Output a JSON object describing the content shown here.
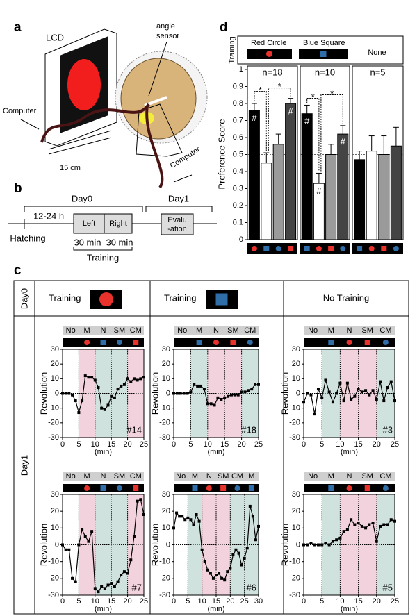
{
  "figure": {
    "panel_a": {
      "label": "a",
      "lcd": "LCD",
      "sensor": [
        "angle",
        "sensor"
      ],
      "computer_left": "Computer",
      "distance": "15 cm",
      "computer_right": "Computer"
    },
    "panel_b": {
      "label": "b",
      "day0": "Day0",
      "day1": "Day1",
      "interval": "12-24 h",
      "hatching": "Hatching",
      "left": "Left",
      "right": "Right",
      "left_time": "30 min",
      "right_time": "30 min",
      "training": "Training",
      "evaluation": [
        "Evalu",
        "-ation"
      ]
    },
    "panel_c": {
      "label": "c",
      "day0": "Day0",
      "day1": "Day1",
      "columns": [
        {
          "title": "Training",
          "shape": "circle",
          "color": "#e8322b"
        },
        {
          "title": "Training",
          "shape": "square",
          "color": "#2f6ea8"
        },
        {
          "title": "No Training"
        }
      ]
    },
    "panel_d": {
      "label": "d",
      "legend_title": "Training",
      "ylabel": "Preference Score",
      "legend": [
        {
          "name": "Red Circle",
          "shape": "circle",
          "color": "#e8322b"
        },
        {
          "name": "Blue Square",
          "shape": "square",
          "color": "#2f6ea8"
        },
        {
          "name": "None"
        }
      ]
    }
  },
  "chart_data": [
    {
      "type": "bar",
      "annotation": "n=18",
      "values": [
        0.76,
        0.45,
        0.56,
        0.8
      ],
      "errors": [
        0.04,
        0.06,
        0.06,
        0.03
      ],
      "colors": [
        "#000000",
        "#ffffff",
        "#9a9a9a",
        "#444444"
      ],
      "stimuli": [
        {
          "shape": "circle",
          "color": "#e8322b"
        },
        {
          "shape": "square",
          "color": "#2f6ea8"
        },
        {
          "shape": "circle",
          "color": "#2f6ea8"
        },
        {
          "shape": "square",
          "color": "#e8322b"
        }
      ],
      "bar_labels": [
        "#",
        null,
        null,
        "#"
      ],
      "comparisons": [
        {
          "pair": [
            0,
            1
          ],
          "label": "*"
        },
        {
          "pair": [
            1,
            3
          ],
          "label": "*"
        }
      ],
      "reference": 0.5,
      "ylim": [
        0,
        1
      ],
      "yticks": [
        0,
        0.1,
        0.2,
        0.3,
        0.4,
        0.5,
        0.6,
        0.7,
        0.8,
        0.9,
        1
      ]
    },
    {
      "type": "bar",
      "annotation": "n=10",
      "values": [
        0.74,
        0.33,
        0.5,
        0.62
      ],
      "errors": [
        0.05,
        0.06,
        0.06,
        0.05
      ],
      "colors": [
        "#000000",
        "#ffffff",
        "#9a9a9a",
        "#444444"
      ],
      "stimuli": [
        {
          "shape": "square",
          "color": "#2f6ea8"
        },
        {
          "shape": "circle",
          "color": "#e8322b"
        },
        {
          "shape": "square",
          "color": "#e8322b"
        },
        {
          "shape": "circle",
          "color": "#2f6ea8"
        }
      ],
      "bar_labels": [
        "#",
        "#",
        null,
        "#"
      ],
      "comparisons": [
        {
          "pair": [
            0,
            1
          ],
          "label": "*"
        },
        {
          "pair": [
            1,
            3
          ],
          "label": "*"
        }
      ],
      "reference": 0.5,
      "ylim": [
        0,
        1
      ]
    },
    {
      "type": "bar",
      "annotation": "n=5",
      "values": [
        0.47,
        0.52,
        0.5,
        0.55
      ],
      "errors": [
        0.05,
        0.09,
        0.11,
        0.11
      ],
      "colors": [
        "#000000",
        "#ffffff",
        "#9a9a9a",
        "#444444"
      ],
      "stimuli": [
        {
          "shape": "square",
          "color": "#2f6ea8"
        },
        {
          "shape": "circle",
          "color": "#e8322b"
        },
        {
          "shape": "square",
          "color": "#e8322b"
        },
        {
          "shape": "circle",
          "color": "#2f6ea8"
        }
      ],
      "reference": 0.5,
      "ylim": [
        0,
        1
      ]
    },
    {
      "type": "line",
      "id": "#14",
      "color": "#000000",
      "xlabel": "(min)",
      "ylabel": "Revolution",
      "phases": [
        {
          "label": "No"
        },
        {
          "label": "M",
          "shape": "circle",
          "color": "#e8322b",
          "shade": "#f2d2dc"
        },
        {
          "label": "N",
          "shape": "square",
          "color": "#2f6ea8",
          "shade": "#cfe2de"
        },
        {
          "label": "SM",
          "shape": "circle",
          "color": "#2f6ea8",
          "shade": "#cfe2de"
        },
        {
          "label": "CM",
          "shape": "square",
          "color": "#e8322b",
          "shade": "#f2d2dc"
        }
      ],
      "x": [
        0,
        1,
        2,
        3,
        4,
        5,
        6,
        7,
        8,
        9,
        10,
        11,
        12,
        13,
        14,
        15,
        16,
        17,
        18,
        19,
        20,
        21,
        22,
        23,
        24,
        25
      ],
      "values": [
        0,
        0,
        0,
        -1,
        -5,
        -13,
        -5,
        12,
        11,
        11,
        9,
        4,
        -10,
        -11,
        -8,
        -2,
        -3,
        3,
        5,
        6,
        10,
        8,
        10,
        9,
        10,
        11
      ],
      "xlim": [
        0,
        25
      ],
      "xticks": [
        0,
        5,
        10,
        15,
        20,
        25
      ],
      "ylim": [
        -30,
        30
      ],
      "yticks": [
        -30,
        -20,
        -10,
        0,
        10,
        20,
        30
      ]
    },
    {
      "type": "line",
      "id": "#18",
      "color": "#000000",
      "xlabel": "(min)",
      "ylabel": "Revolution",
      "phases": [
        {
          "label": "No"
        },
        {
          "label": "M",
          "shape": "square",
          "color": "#2f6ea8",
          "shade": "#cfe2de"
        },
        {
          "label": "N",
          "shape": "circle",
          "color": "#e8322b",
          "shade": "#f2d2dc"
        },
        {
          "label": "SM",
          "shape": "square",
          "color": "#e8322b",
          "shade": "#f2d2dc"
        },
        {
          "label": "CM",
          "shape": "circle",
          "color": "#2f6ea8",
          "shade": "#cfe2de"
        }
      ],
      "x": [
        0,
        1,
        2,
        3,
        4,
        5,
        6,
        7,
        8,
        9,
        10,
        11,
        12,
        13,
        14,
        15,
        16,
        17,
        18,
        19,
        20,
        21,
        22,
        23,
        24,
        25
      ],
      "values": [
        0,
        0,
        0,
        0,
        0,
        1,
        6,
        5,
        5,
        3,
        -7,
        -7,
        -8,
        -3,
        -4,
        -3,
        -2,
        -1,
        -1,
        -1,
        1,
        1,
        2,
        3,
        6,
        6
      ],
      "xlim": [
        0,
        25
      ],
      "xticks": [
        0,
        5,
        10,
        15,
        20,
        25
      ],
      "ylim": [
        -30,
        30
      ],
      "yticks": [
        -30,
        -20,
        -10,
        0,
        10,
        20,
        30
      ]
    },
    {
      "type": "line",
      "id": "#3",
      "color": "#000000",
      "xlabel": "(min)",
      "ylabel": "Revolution",
      "phases": [
        {
          "label": "No"
        },
        {
          "label": "M",
          "shape": "square",
          "color": "#2f6ea8",
          "shade": "#cfe2de"
        },
        {
          "label": "N",
          "shape": "circle",
          "color": "#e8322b",
          "shade": "#f2d2dc"
        },
        {
          "label": "SM",
          "shape": "square",
          "color": "#e8322b",
          "shade": "#f2d2dc"
        },
        {
          "label": "CM",
          "shape": "circle",
          "color": "#2f6ea8",
          "shade": "#cfe2de"
        }
      ],
      "x": [
        0,
        1,
        2,
        3,
        4,
        5,
        6,
        7,
        8,
        9,
        10,
        11,
        12,
        13,
        14,
        15,
        16,
        17,
        18,
        19,
        20,
        21,
        22,
        23,
        24,
        25
      ],
      "values": [
        -6,
        0,
        -1,
        -14,
        3,
        -3,
        9,
        1,
        -6,
        0,
        7,
        -5,
        7,
        -4,
        -2,
        3,
        1,
        2,
        -1,
        2,
        -4,
        8,
        -5,
        4,
        8,
        -5
      ],
      "xlim": [
        0,
        25
      ],
      "xticks": [
        0,
        5,
        10,
        15,
        20,
        25
      ],
      "ylim": [
        -30,
        30
      ],
      "yticks": [
        -30,
        -20,
        -10,
        0,
        10,
        20,
        30
      ]
    },
    {
      "type": "line",
      "id": "#7",
      "color": "#000000",
      "xlabel": "(min)",
      "ylabel": "Revolution",
      "phases": [
        {
          "label": "No"
        },
        {
          "label": "M",
          "shape": "circle",
          "color": "#e8322b",
          "shade": "#f2d2dc"
        },
        {
          "label": "N",
          "shape": "square",
          "color": "#2f6ea8",
          "shade": "#cfe2de"
        },
        {
          "label": "SM",
          "shape": "circle",
          "color": "#2f6ea8",
          "shade": "#cfe2de"
        },
        {
          "label": "CM",
          "shape": "square",
          "color": "#e8322b",
          "shade": "#f2d2dc"
        }
      ],
      "x": [
        0,
        1,
        2,
        3,
        4,
        5,
        6,
        7,
        8,
        9,
        10,
        11,
        12,
        13,
        14,
        15,
        16,
        17,
        18,
        19,
        20,
        21,
        22,
        23,
        24,
        25
      ],
      "values": [
        0,
        -3,
        -3,
        -20,
        -22,
        0,
        9,
        5,
        2,
        8,
        -26,
        -28,
        -25,
        -26,
        -24,
        -23,
        -25,
        -22,
        -18,
        -16,
        -17,
        -9,
        5,
        26,
        27,
        18
      ],
      "xlim": [
        0,
        25
      ],
      "xticks": [
        0,
        5,
        10,
        15,
        20,
        25
      ],
      "ylim": [
        -30,
        30
      ],
      "yticks": [
        -30,
        -20,
        -10,
        0,
        10,
        20,
        30
      ]
    },
    {
      "type": "line",
      "id": "#6",
      "color": "#000000",
      "xlabel": "(min)",
      "ylabel": "Revolution",
      "phases": [
        {
          "label": "No"
        },
        {
          "label": "M",
          "shape": "square",
          "color": "#2f6ea8",
          "shade": "#cfe2de"
        },
        {
          "label": "N",
          "shape": "circle",
          "color": "#e8322b",
          "shade": "#f2d2dc"
        },
        {
          "label": "SM",
          "shape": "square",
          "color": "#e8322b",
          "shade": "#f2d2dc"
        },
        {
          "label": "CM",
          "shape": "circle",
          "color": "#2f6ea8",
          "shade": "#cfe2de"
        },
        {
          "label": "M",
          "shape": "square",
          "color": "#2f6ea8",
          "shade": "#cfe2de"
        }
      ],
      "x": [
        0,
        1,
        2,
        3,
        4,
        5,
        6,
        7,
        8,
        9,
        10,
        11,
        12,
        13,
        14,
        15,
        16,
        17,
        18,
        19,
        20,
        21,
        22,
        23,
        24,
        25,
        26,
        27,
        28,
        29,
        30
      ],
      "values": [
        10,
        19,
        17,
        17,
        15,
        16,
        15,
        12,
        18,
        14,
        -3,
        -10,
        -15,
        -17,
        -20,
        -18,
        -17,
        -20,
        -21,
        -16,
        -14,
        -6,
        -3,
        -5,
        -12,
        -8,
        -2,
        23,
        17,
        3,
        11
      ],
      "xlim": [
        0,
        30
      ],
      "xticks": [
        0,
        5,
        10,
        15,
        20,
        25,
        30
      ],
      "ylim": [
        -30,
        30
      ],
      "yticks": [
        -30,
        -20,
        -10,
        0,
        10,
        20,
        30
      ]
    },
    {
      "type": "line",
      "id": "#5",
      "color": "#000000",
      "xlabel": "(min)",
      "ylabel": "Revolution",
      "phases": [
        {
          "label": "No"
        },
        {
          "label": "M",
          "shape": "square",
          "color": "#2f6ea8",
          "shade": "#cfe2de"
        },
        {
          "label": "N",
          "shape": "circle",
          "color": "#e8322b",
          "shade": "#f2d2dc"
        },
        {
          "label": "SM",
          "shape": "square",
          "color": "#e8322b",
          "shade": "#f2d2dc"
        },
        {
          "label": "CM",
          "shape": "circle",
          "color": "#2f6ea8",
          "shade": "#cfe2de"
        }
      ],
      "x": [
        0,
        1,
        2,
        3,
        4,
        5,
        6,
        7,
        8,
        9,
        10,
        11,
        12,
        13,
        14,
        15,
        16,
        17,
        18,
        19,
        20,
        21,
        22,
        23,
        24,
        25
      ],
      "values": [
        0,
        0,
        1,
        0,
        0,
        0,
        1,
        0,
        2,
        3,
        4,
        8,
        9,
        15,
        12,
        13,
        11,
        10,
        12,
        13,
        2,
        11,
        12,
        12,
        15,
        14
      ],
      "xlim": [
        0,
        25
      ],
      "xticks": [
        0,
        5,
        10,
        15,
        20,
        25
      ],
      "ylim": [
        -30,
        30
      ],
      "yticks": [
        -30,
        -20,
        -10,
        0,
        10,
        20,
        30
      ]
    }
  ]
}
